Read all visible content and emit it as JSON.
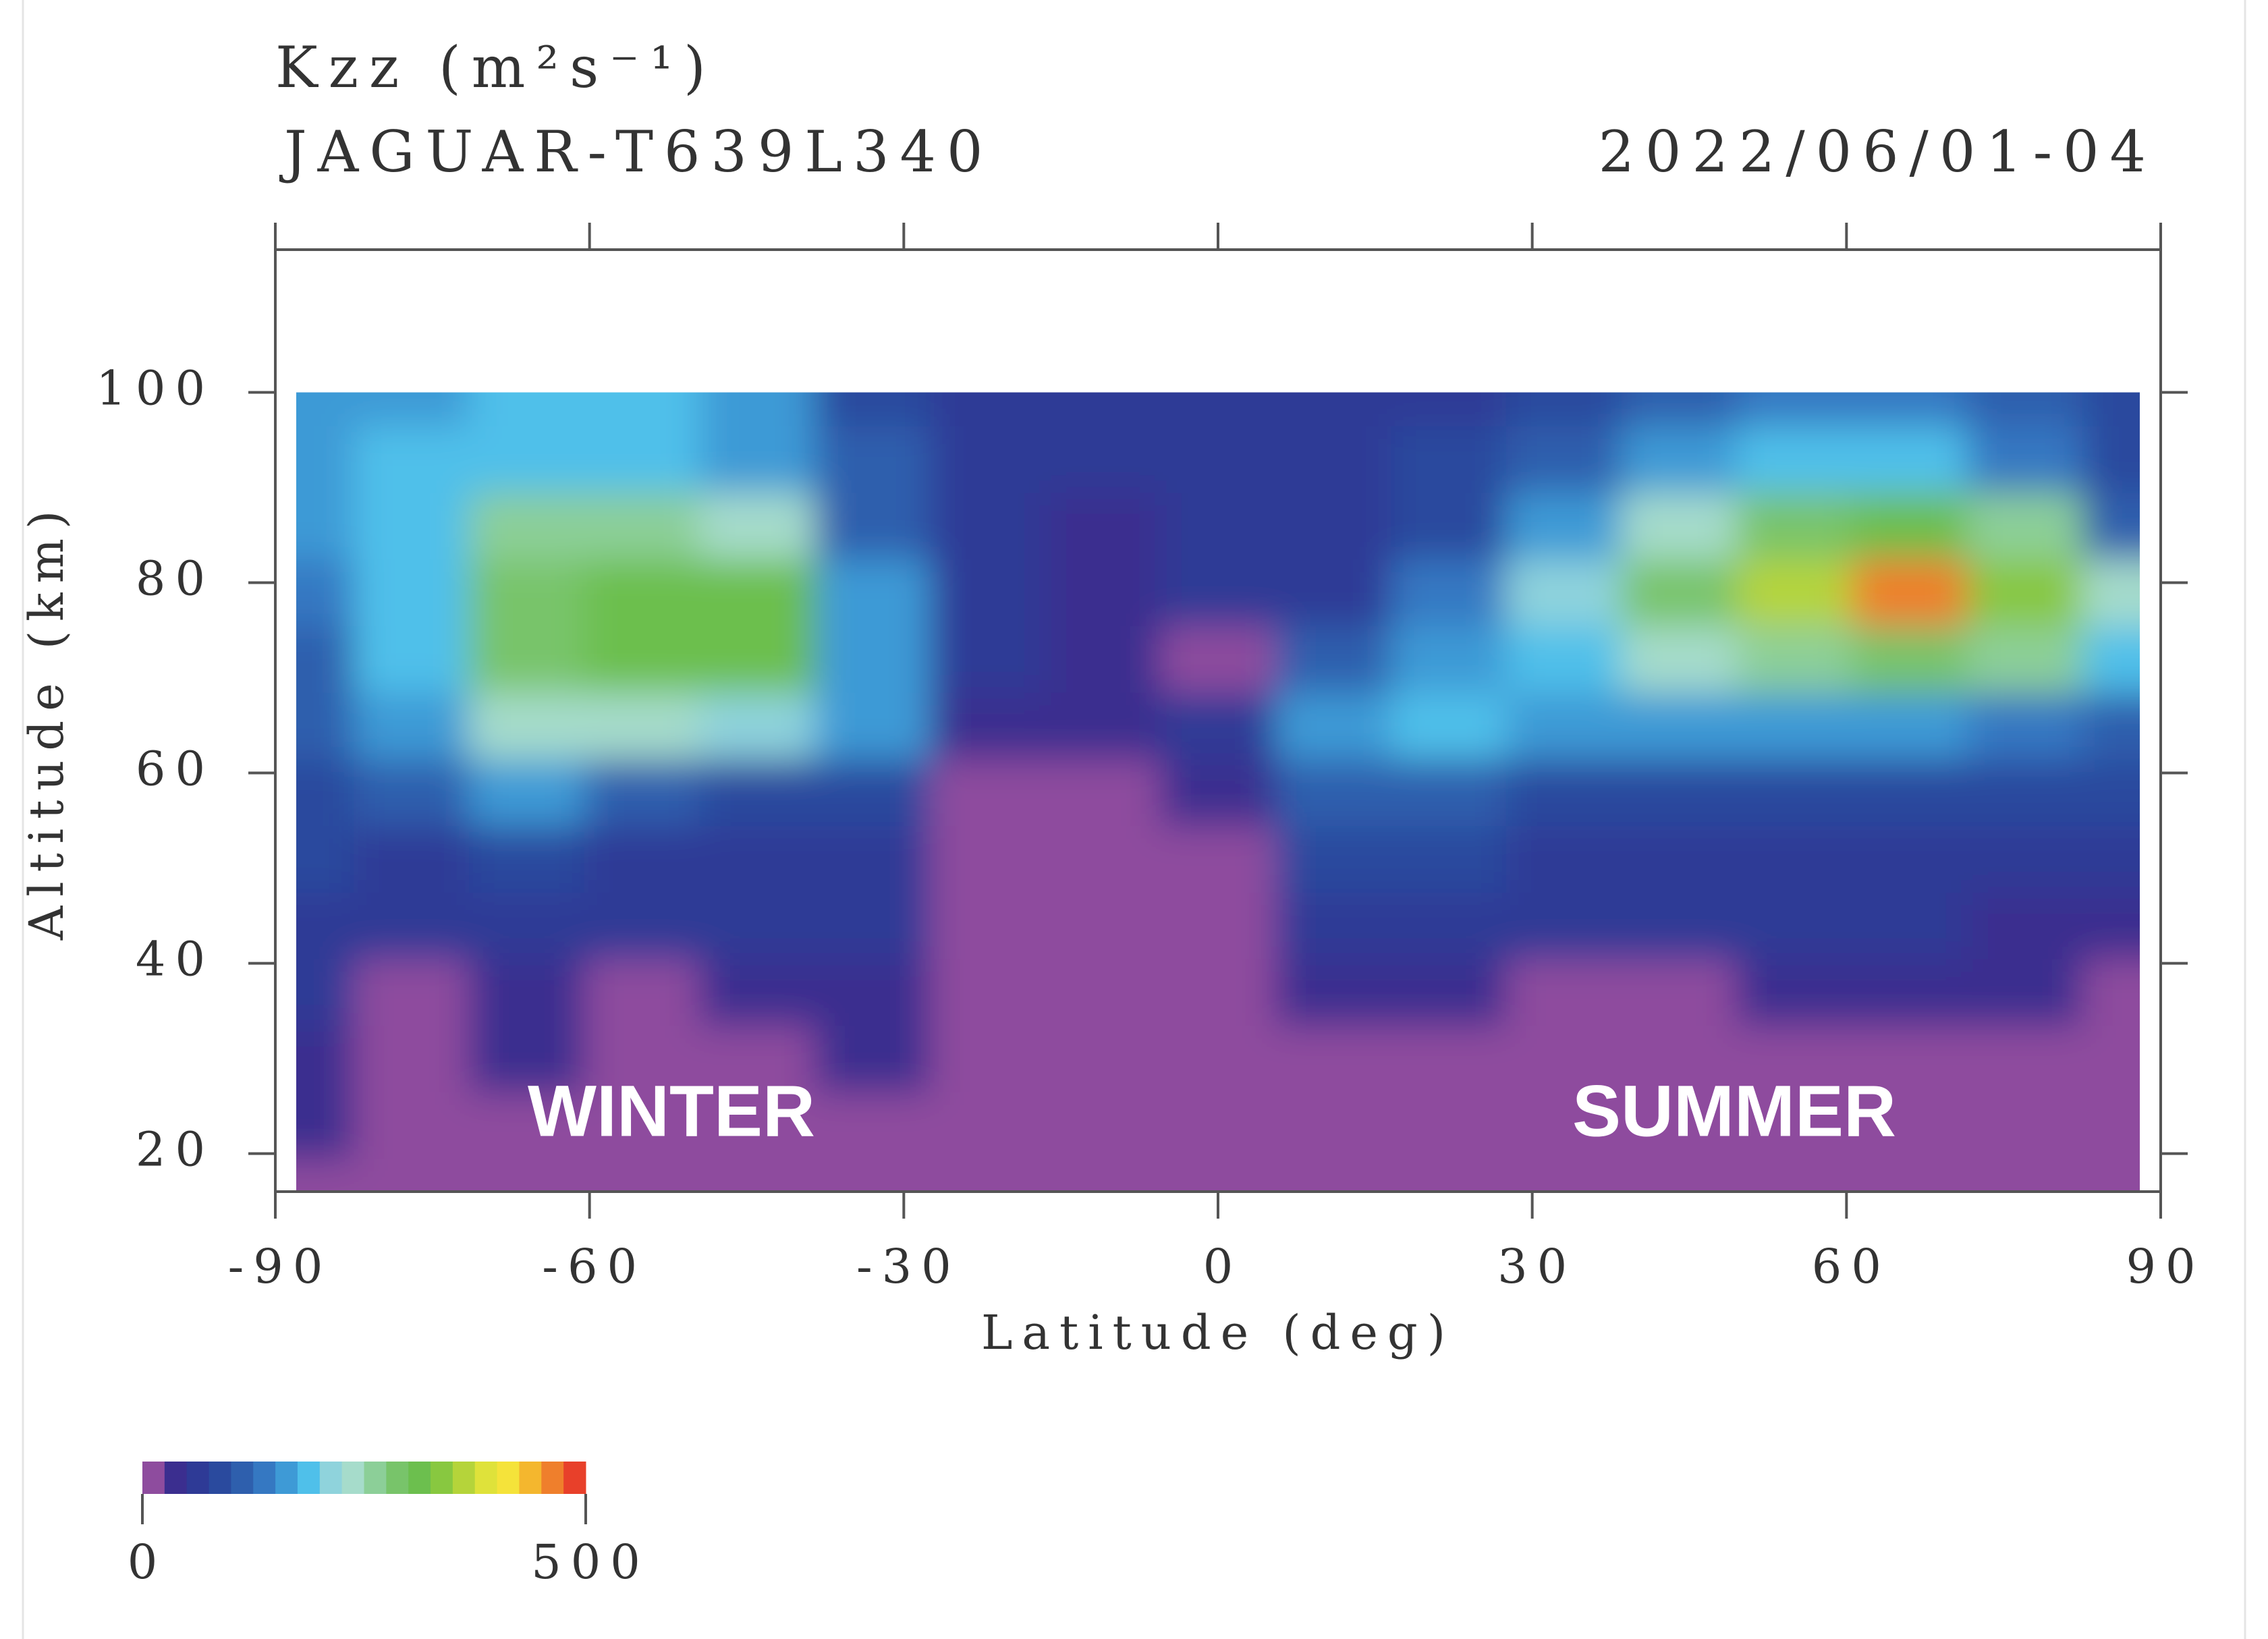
{
  "chart_data": {
    "type": "contour",
    "title": "Kzz (m²s⁻¹)",
    "subtitle": "JAGUAR-T639L340",
    "date": "2022/06/01-04",
    "x_label": "Latitude (deg)",
    "y_label": "Altitude (km)",
    "annotations": [
      "WINTER",
      "SUMMER"
    ],
    "xlim": [
      -90,
      90
    ],
    "ylim": [
      16,
      115
    ],
    "xticks": [
      -90,
      -60,
      -30,
      0,
      30,
      60,
      90
    ],
    "yticks": [
      20,
      40,
      60,
      80,
      100
    ],
    "x": [
      -88,
      -77,
      -66,
      -55,
      -44,
      -33,
      -22,
      -11,
      0,
      11,
      22,
      33,
      44,
      55,
      66,
      77,
      88
    ],
    "y": [
      16,
      23,
      30,
      37,
      44,
      51,
      58,
      65,
      72,
      79,
      86,
      93,
      100
    ],
    "z": [
      [
        10,
        10,
        10,
        10,
        10,
        10,
        10,
        10,
        10,
        10,
        10,
        10,
        10,
        10,
        10,
        10,
        10
      ],
      [
        40,
        10,
        10,
        10,
        10,
        10,
        10,
        10,
        10,
        10,
        10,
        10,
        10,
        10,
        10,
        10,
        10
      ],
      [
        40,
        10,
        40,
        10,
        10,
        40,
        10,
        10,
        10,
        10,
        10,
        10,
        10,
        10,
        10,
        10,
        10
      ],
      [
        50,
        20,
        40,
        20,
        40,
        40,
        10,
        10,
        10,
        40,
        40,
        20,
        10,
        40,
        40,
        40,
        10
      ],
      [
        60,
        50,
        50,
        50,
        50,
        60,
        10,
        10,
        10,
        60,
        60,
        50,
        50,
        50,
        50,
        40,
        40
      ],
      [
        80,
        70,
        80,
        60,
        60,
        60,
        10,
        10,
        20,
        80,
        80,
        60,
        50,
        50,
        60,
        60,
        60
      ],
      [
        90,
        100,
        150,
        100,
        90,
        90,
        10,
        10,
        40,
        120,
        100,
        90,
        80,
        90,
        90,
        90,
        80
      ],
      [
        100,
        150,
        230,
        230,
        220,
        150,
        40,
        40,
        50,
        160,
        180,
        150,
        160,
        150,
        150,
        140,
        120
      ],
      [
        110,
        180,
        280,
        300,
        300,
        170,
        60,
        40,
        10,
        120,
        150,
        180,
        230,
        260,
        280,
        250,
        180
      ],
      [
        130,
        180,
        280,
        320,
        310,
        150,
        60,
        40,
        50,
        70,
        130,
        200,
        290,
        350,
        450,
        330,
        230
      ],
      [
        160,
        190,
        250,
        260,
        240,
        110,
        50,
        40,
        50,
        60,
        90,
        150,
        230,
        280,
        300,
        250,
        110
      ],
      [
        150,
        190,
        190,
        190,
        160,
        100,
        60,
        50,
        60,
        60,
        80,
        120,
        170,
        180,
        180,
        130,
        80
      ],
      [
        150,
        170,
        180,
        180,
        150,
        90,
        60,
        60,
        60,
        60,
        70,
        90,
        120,
        140,
        140,
        100,
        80
      ]
    ],
    "colorbar": {
      "lim": [
        0,
        500
      ],
      "ticks": [
        0,
        500
      ],
      "colors": [
        "#8e4c9e",
        "#3b2e8f",
        "#2e3a96",
        "#2a4a9e",
        "#2e5fad",
        "#3578c2",
        "#3e9ad6",
        "#4fc0ea",
        "#8fd3dc",
        "#a6dccb",
        "#8ccf98",
        "#78c46a",
        "#6cbf4e",
        "#88c840",
        "#b5d43a",
        "#dfe23a",
        "#f5e33a",
        "#f4b72e",
        "#ef7f2c",
        "#e8402a"
      ]
    }
  }
}
